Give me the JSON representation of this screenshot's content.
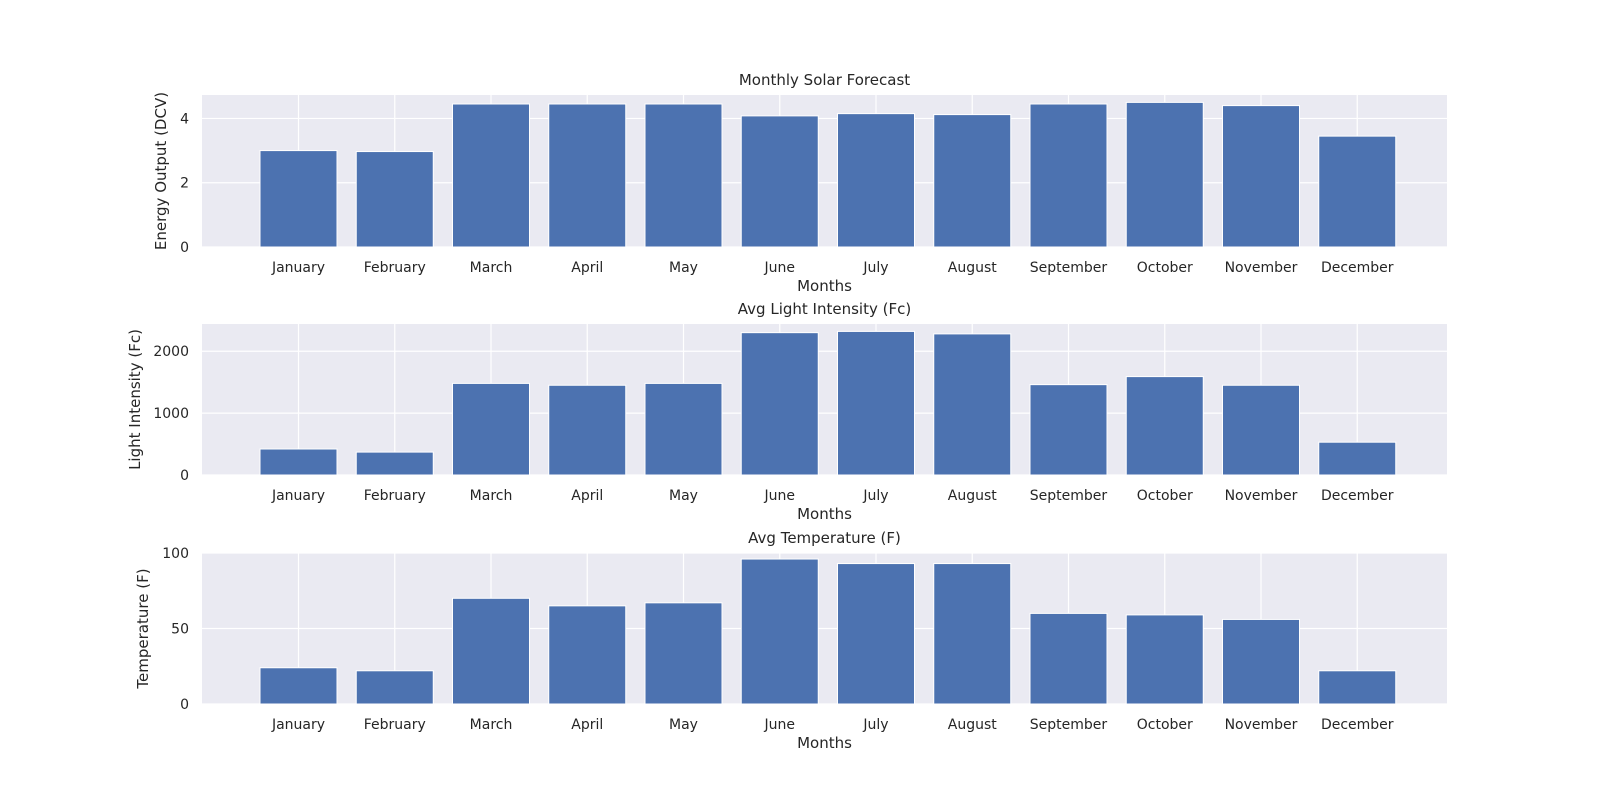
{
  "chart_data": [
    {
      "type": "bar",
      "title": "Monthly Solar Forecast",
      "xlabel": "Months",
      "ylabel": "Energy Output (DCV)",
      "categories": [
        "January",
        "February",
        "March",
        "April",
        "May",
        "June",
        "July",
        "August",
        "September",
        "October",
        "November",
        "December"
      ],
      "values": [
        3.0,
        2.97,
        4.45,
        4.45,
        4.45,
        4.08,
        4.15,
        4.12,
        4.45,
        4.5,
        4.4,
        3.45
      ],
      "ylim": [
        0,
        4.73
      ],
      "yticks": [
        0,
        2,
        4
      ],
      "grid": true,
      "bar_color": "#4c72b0",
      "background": "#eaeaf2"
    },
    {
      "type": "bar",
      "title": "Avg Light Intensity (Fc)",
      "xlabel": "Months",
      "ylabel": "Light Intensity (Fc)",
      "categories": [
        "January",
        "February",
        "March",
        "April",
        "May",
        "June",
        "July",
        "August",
        "September",
        "October",
        "November",
        "December"
      ],
      "values": [
        420,
        370,
        1480,
        1450,
        1480,
        2300,
        2320,
        2280,
        1460,
        1590,
        1450,
        530
      ],
      "ylim": [
        0,
        2440
      ],
      "yticks": [
        0,
        1000,
        2000
      ],
      "grid": true,
      "bar_color": "#4c72b0",
      "background": "#eaeaf2"
    },
    {
      "type": "bar",
      "title": "Avg Temperature (F)",
      "xlabel": "Months",
      "ylabel": "Temperature (F)",
      "categories": [
        "January",
        "February",
        "March",
        "April",
        "May",
        "June",
        "July",
        "August",
        "September",
        "October",
        "November",
        "December"
      ],
      "values": [
        24,
        22,
        70,
        65,
        67,
        96,
        93,
        93,
        60,
        59,
        56,
        22
      ],
      "ylim": [
        0,
        100
      ],
      "yticks": [
        0,
        50,
        100
      ],
      "grid": true,
      "bar_color": "#4c72b0",
      "background": "#eaeaf2"
    }
  ]
}
